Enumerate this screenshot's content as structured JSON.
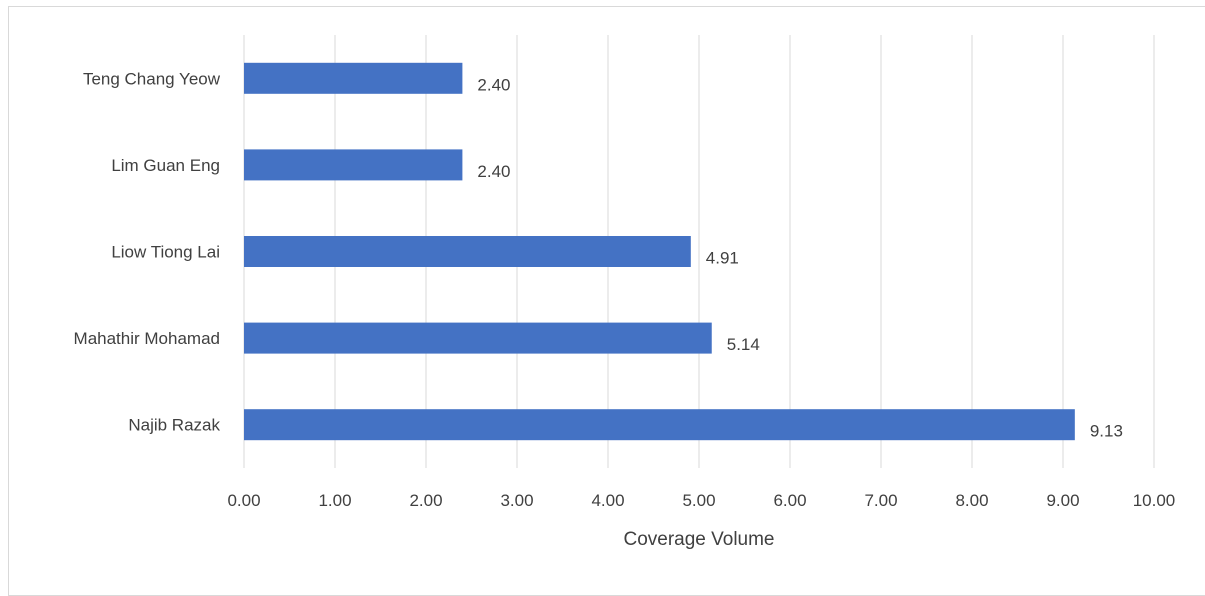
{
  "colors": {
    "bar": "#4472c4",
    "grid": "#d9d9d9",
    "text": "#404040",
    "frame": "#d9d9d9"
  },
  "chart_data": {
    "type": "bar",
    "orientation": "horizontal",
    "title": "",
    "categories": [
      "Teng Chang Yeow",
      "Lim Guan Eng",
      "Liow Tiong Lai",
      "Mahathir Mohamad",
      "Najib Razak"
    ],
    "values": [
      2.4,
      2.4,
      4.91,
      5.14,
      9.13
    ],
    "data_labels": [
      "2.40",
      "2.40",
      "4.91",
      "5.14",
      "9.13"
    ],
    "xlabel": "Coverage Volume",
    "ylabel": "",
    "xlim": [
      0,
      10
    ],
    "x_ticks": [
      "0.00",
      "1.00",
      "2.00",
      "3.00",
      "4.00",
      "5.00",
      "6.00",
      "7.00",
      "8.00",
      "9.00",
      "10.00"
    ],
    "grid": true,
    "legend": "none"
  }
}
